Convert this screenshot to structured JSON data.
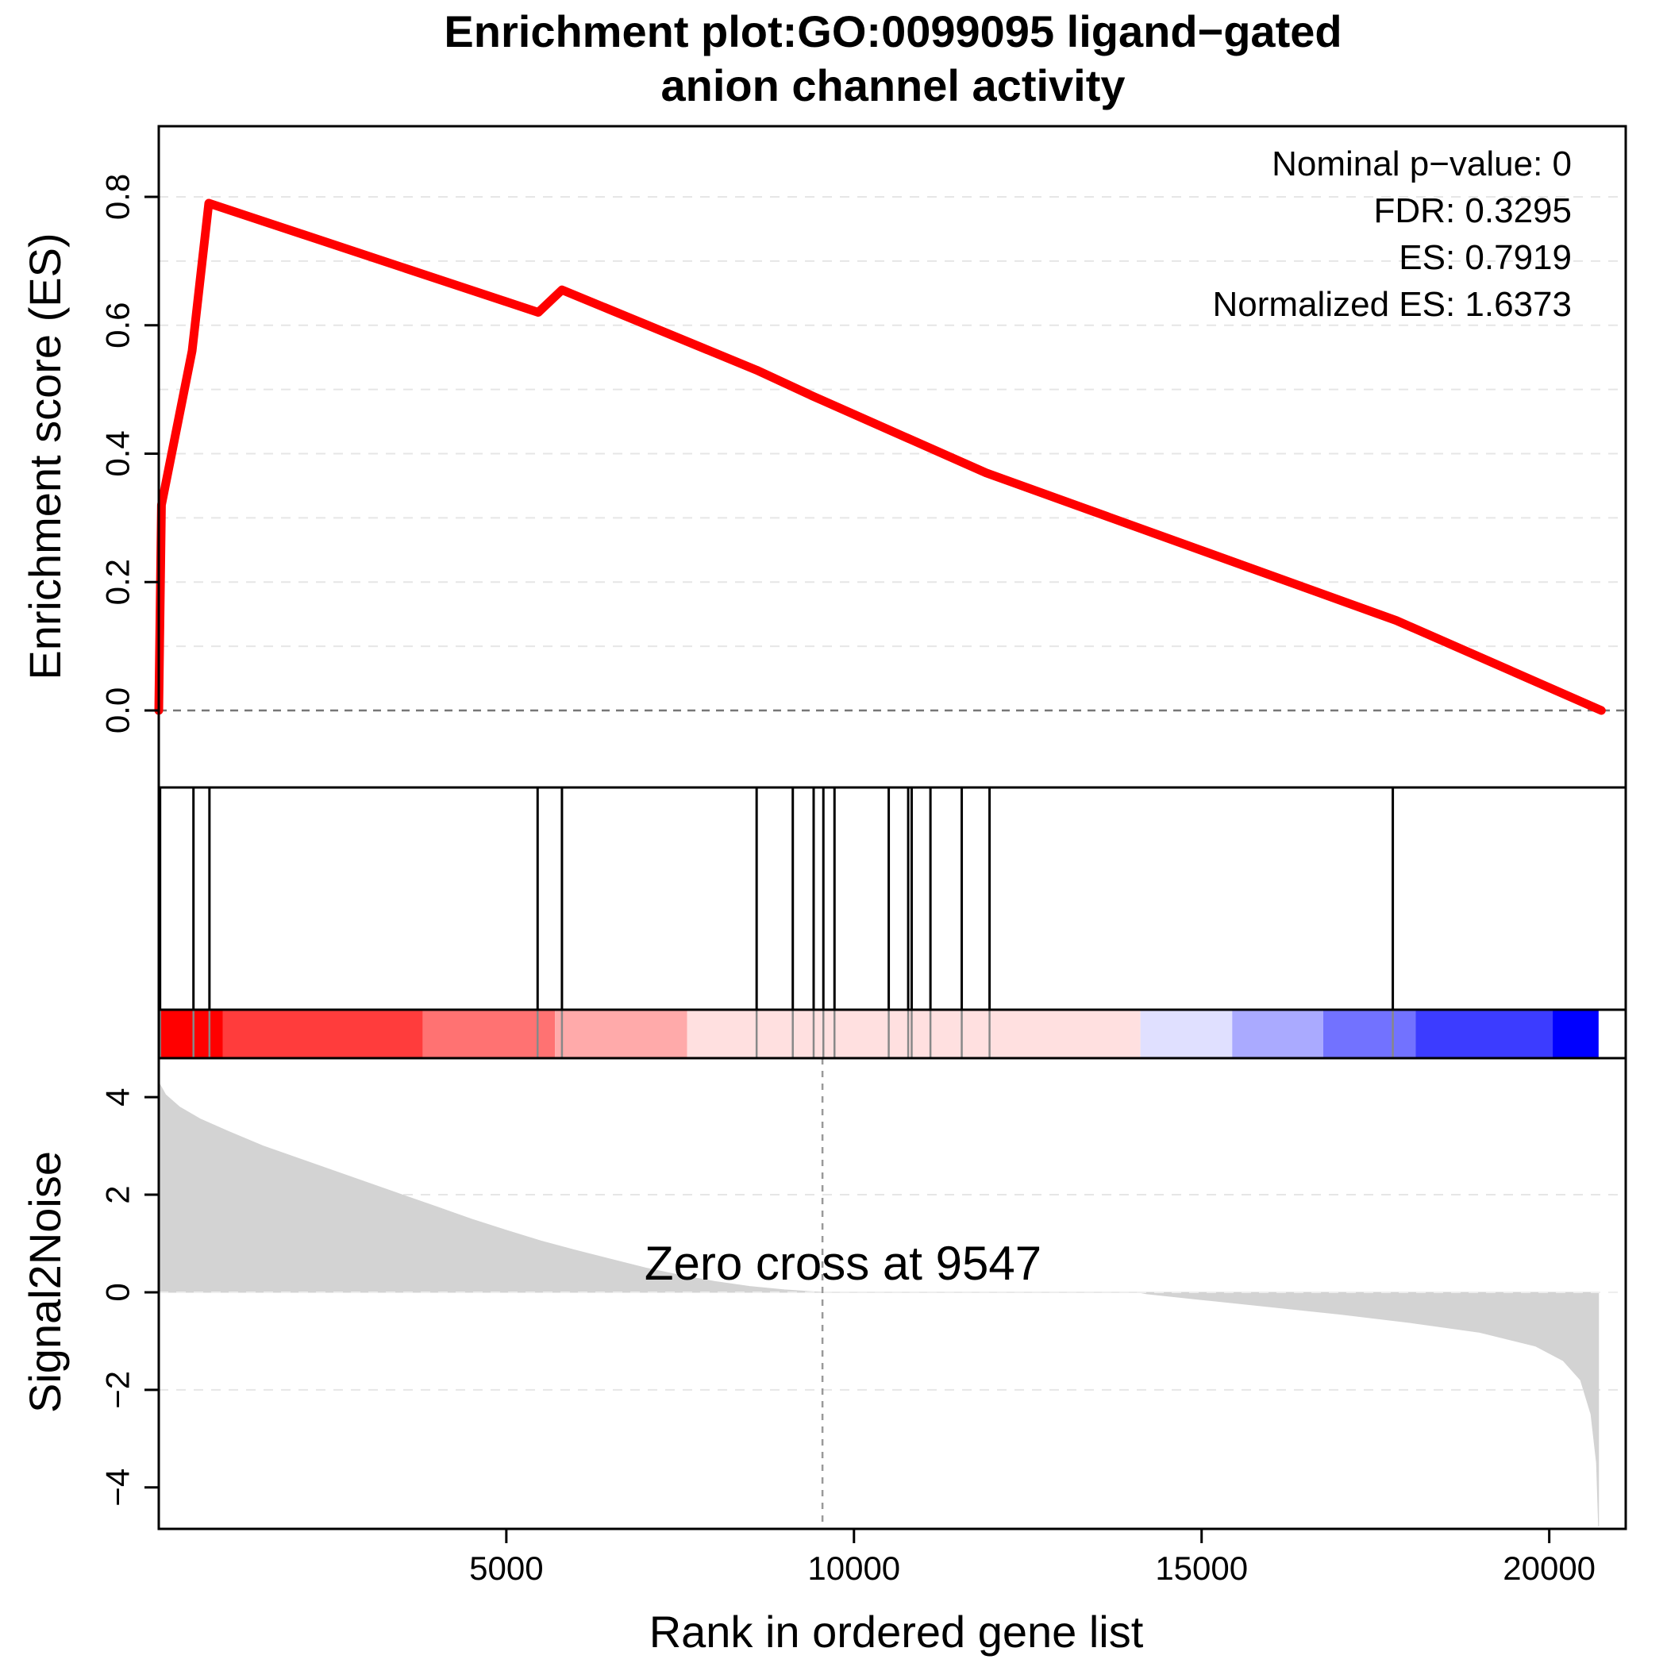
{
  "chart_data": {
    "type": "line",
    "title_line1": "Enrichment plot:GO:0099095 ligand−gated",
    "title_line2": "anion channel activity",
    "stats": {
      "pvalue": "Nominal p−value: 0",
      "fdr": "FDR: 0.3295",
      "es": "ES: 0.7919",
      "nes": "Normalized ES: 1.6373"
    },
    "es_panel": {
      "ylabel": "Enrichment score (ES)",
      "ylim": [
        -0.12,
        0.91
      ],
      "yticks": [
        0.0,
        0.2,
        0.4,
        0.6,
        0.8
      ],
      "ytick_labels": [
        "0.0",
        "0.2",
        "0.4",
        "0.6",
        "0.8"
      ],
      "grid_values": [
        0.1,
        0.2,
        0.3,
        0.4,
        0.5,
        0.6,
        0.7,
        0.8
      ],
      "line_color": "#ff0000",
      "curve": [
        [
          1,
          0.0
        ],
        [
          40,
          0.32
        ],
        [
          480,
          0.56
        ],
        [
          720,
          0.79
        ],
        [
          5460,
          0.62
        ],
        [
          5800,
          0.655
        ],
        [
          8600,
          0.53
        ],
        [
          9400,
          0.49
        ],
        [
          11900,
          0.37
        ],
        [
          17800,
          0.14
        ],
        [
          20750,
          0.0
        ]
      ]
    },
    "hits": [
      20,
      500,
      730,
      5450,
      5800,
      8600,
      9120,
      9420,
      9560,
      9720,
      10500,
      10780,
      10830,
      11100,
      11550,
      11950,
      17750
    ],
    "color_bar": [
      {
        "start": 0,
        "end": 920,
        "color": "#ff0000"
      },
      {
        "start": 920,
        "end": 3800,
        "color": "#ff3c3c"
      },
      {
        "start": 3800,
        "end": 5700,
        "color": "#ff7272"
      },
      {
        "start": 5700,
        "end": 7600,
        "color": "#ffaaaa"
      },
      {
        "start": 7600,
        "end": 14120,
        "color": "#ffe0e0"
      },
      {
        "start": 14120,
        "end": 15440,
        "color": "#e0e0ff"
      },
      {
        "start": 15440,
        "end": 16750,
        "color": "#aaaaff"
      },
      {
        "start": 16750,
        "end": 18080,
        "color": "#7272ff"
      },
      {
        "start": 18080,
        "end": 20050,
        "color": "#3c3cff"
      },
      {
        "start": 20050,
        "end": 20710,
        "color": "#0000ff"
      }
    ],
    "metric_panel": {
      "ylabel": "Signal2Noise",
      "ylim": [
        -4.85,
        4.8
      ],
      "yticks": [
        -4,
        -2,
        0,
        2,
        4
      ],
      "ytick_labels": [
        "−4",
        "−2",
        "0",
        "2",
        "4"
      ],
      "grid_values": [
        -2,
        2
      ],
      "fill_color": "#d3d3d3",
      "profile": [
        [
          1,
          4.3
        ],
        [
          100,
          4.05
        ],
        [
          300,
          3.8
        ],
        [
          600,
          3.55
        ],
        [
          1000,
          3.3
        ],
        [
          1500,
          3.0
        ],
        [
          2000,
          2.75
        ],
        [
          2500,
          2.5
        ],
        [
          3000,
          2.25
        ],
        [
          3500,
          2.0
        ],
        [
          4000,
          1.75
        ],
        [
          4500,
          1.5
        ],
        [
          5000,
          1.27
        ],
        [
          5500,
          1.05
        ],
        [
          6000,
          0.86
        ],
        [
          6500,
          0.68
        ],
        [
          7000,
          0.5
        ],
        [
          7500,
          0.35
        ],
        [
          8000,
          0.22
        ],
        [
          8500,
          0.12
        ],
        [
          9000,
          0.05
        ],
        [
          9547,
          0.0
        ],
        [
          10000,
          0.0
        ],
        [
          11000,
          0.0
        ],
        [
          12000,
          0.0
        ],
        [
          13000,
          0.0
        ],
        [
          14100,
          0.0
        ],
        [
          14200,
          -0.03
        ],
        [
          15000,
          -0.15
        ],
        [
          16000,
          -0.3
        ],
        [
          17000,
          -0.45
        ],
        [
          18000,
          -0.62
        ],
        [
          19000,
          -0.82
        ],
        [
          19800,
          -1.1
        ],
        [
          20200,
          -1.4
        ],
        [
          20450,
          -1.8
        ],
        [
          20600,
          -2.5
        ],
        [
          20680,
          -3.5
        ],
        [
          20710,
          -4.8
        ]
      ],
      "zero_cross_value": 9547,
      "zero_cross_label": "Zero cross at 9547"
    },
    "xlabel": "Rank in ordered gene list",
    "xlim": [
      1,
      21100
    ],
    "xticks": [
      5000,
      10000,
      15000,
      20000
    ],
    "xtick_labels": [
      "5000",
      "10000",
      "15000",
      "20000"
    ]
  }
}
